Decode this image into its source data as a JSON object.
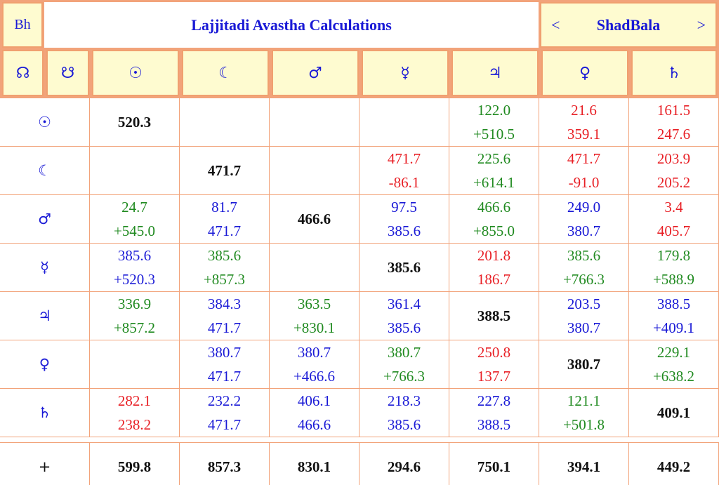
{
  "header": {
    "bh_label": "Bh",
    "title": "Lajjitadi Avastha Calculations",
    "nav_prev": "<",
    "nav_label": "ShadBala",
    "nav_next": ">"
  },
  "columns": [
    {
      "glyph": "☊",
      "icon": "rahu-icon"
    },
    {
      "glyph": "☋",
      "icon": "ketu-icon"
    },
    {
      "glyph": "☉",
      "icon": "sun-icon"
    },
    {
      "glyph": "☾",
      "icon": "moon-icon"
    },
    {
      "glyph": "♂",
      "icon": "mars-icon"
    },
    {
      "glyph": "☿",
      "icon": "mercury-icon"
    },
    {
      "glyph": "♃",
      "icon": "jupiter-icon"
    },
    {
      "glyph": "♀",
      "icon": "venus-icon"
    },
    {
      "glyph": "♄",
      "icon": "saturn-icon"
    }
  ],
  "rows": [
    {
      "glyph": "☉",
      "icon": "sun-icon",
      "cells": [
        {
          "type": "diag",
          "v": "520.3"
        },
        {
          "type": "empty"
        },
        {
          "type": "empty"
        },
        {
          "type": "empty"
        },
        {
          "type": "pair",
          "a": "122.0",
          "b": "+510.5",
          "color": "green"
        },
        {
          "type": "pair",
          "a": "21.6",
          "b": "359.1",
          "color": "red"
        },
        {
          "type": "pair",
          "a": "161.5",
          "b": "247.6",
          "color": "red"
        }
      ]
    },
    {
      "glyph": "☾",
      "icon": "moon-icon",
      "cells": [
        {
          "type": "empty"
        },
        {
          "type": "diag",
          "v": "471.7"
        },
        {
          "type": "empty"
        },
        {
          "type": "pair",
          "a": "471.7",
          "b": "-86.1",
          "color": "red"
        },
        {
          "type": "pair",
          "a": "225.6",
          "b": "+614.1",
          "color": "green"
        },
        {
          "type": "pair",
          "a": "471.7",
          "b": "-91.0",
          "color": "red"
        },
        {
          "type": "pair",
          "a": "203.9",
          "b": "205.2",
          "color": "red"
        }
      ]
    },
    {
      "glyph": "♂",
      "icon": "mars-icon",
      "cells": [
        {
          "type": "pair",
          "a": "24.7",
          "b": "+545.0",
          "color": "green"
        },
        {
          "type": "pair",
          "a": "81.7",
          "b": "471.7",
          "color": "blue"
        },
        {
          "type": "diag",
          "v": "466.6"
        },
        {
          "type": "pair",
          "a": "97.5",
          "b": "385.6",
          "color": "blue"
        },
        {
          "type": "pair",
          "a": "466.6",
          "b": "+855.0",
          "color": "green"
        },
        {
          "type": "pair",
          "a": "249.0",
          "b": "380.7",
          "color": "blue"
        },
        {
          "type": "pair",
          "a": "3.4",
          "b": "405.7",
          "color": "red"
        }
      ]
    },
    {
      "glyph": "☿",
      "icon": "mercury-icon",
      "cells": [
        {
          "type": "pair",
          "a": "385.6",
          "b": "+520.3",
          "color": "blue"
        },
        {
          "type": "pair",
          "a": "385.6",
          "b": "+857.3",
          "color": "green"
        },
        {
          "type": "empty"
        },
        {
          "type": "diag",
          "v": "385.6"
        },
        {
          "type": "pair",
          "a": "201.8",
          "b": "186.7",
          "color": "red"
        },
        {
          "type": "pair",
          "a": "385.6",
          "b": "+766.3",
          "color": "green"
        },
        {
          "type": "pair",
          "a": "179.8",
          "b": "+588.9",
          "color": "green"
        }
      ]
    },
    {
      "glyph": "♃",
      "icon": "jupiter-icon",
      "cells": [
        {
          "type": "pair",
          "a": "336.9",
          "b": "+857.2",
          "color": "green"
        },
        {
          "type": "pair",
          "a": "384.3",
          "b": "471.7",
          "color": "blue"
        },
        {
          "type": "pair",
          "a": "363.5",
          "b": "+830.1",
          "color": "green"
        },
        {
          "type": "pair",
          "a": "361.4",
          "b": "385.6",
          "color": "blue"
        },
        {
          "type": "diag",
          "v": "388.5"
        },
        {
          "type": "pair",
          "a": "203.5",
          "b": "380.7",
          "color": "blue"
        },
        {
          "type": "pair",
          "a": "388.5",
          "b": "+409.1",
          "color": "blue"
        }
      ]
    },
    {
      "glyph": "♀",
      "icon": "venus-icon",
      "cells": [
        {
          "type": "empty"
        },
        {
          "type": "pair",
          "a": "380.7",
          "b": "471.7",
          "color": "blue"
        },
        {
          "type": "pair",
          "a": "380.7",
          "b": "+466.6",
          "color": "blue"
        },
        {
          "type": "pair",
          "a": "380.7",
          "b": "+766.3",
          "color": "green"
        },
        {
          "type": "pair",
          "a": "250.8",
          "b": "137.7",
          "color": "red"
        },
        {
          "type": "diag",
          "v": "380.7"
        },
        {
          "type": "pair",
          "a": "229.1",
          "b": "+638.2",
          "color": "green"
        }
      ]
    },
    {
      "glyph": "♄",
      "icon": "saturn-icon",
      "cells": [
        {
          "type": "pair",
          "a": "282.1",
          "b": "238.2",
          "color": "red"
        },
        {
          "type": "pair",
          "a": "232.2",
          "b": "471.7",
          "color": "blue"
        },
        {
          "type": "pair",
          "a": "406.1",
          "b": "466.6",
          "color": "blue"
        },
        {
          "type": "pair",
          "a": "218.3",
          "b": "385.6",
          "color": "blue"
        },
        {
          "type": "pair",
          "a": "227.8",
          "b": "388.5",
          "color": "blue"
        },
        {
          "type": "pair",
          "a": "121.1",
          "b": "+501.8",
          "color": "green"
        },
        {
          "type": "diag",
          "v": "409.1"
        }
      ]
    }
  ],
  "totals": {
    "label": "+",
    "values": [
      "599.8",
      "857.3",
      "830.1",
      "294.6",
      "750.1",
      "394.1",
      "449.2"
    ]
  },
  "colors": {
    "green": "#208a20",
    "red": "#e81f25",
    "blue": "#1a1ad6",
    "header_bg": "#fefbd0",
    "border": "#f2a37a"
  }
}
